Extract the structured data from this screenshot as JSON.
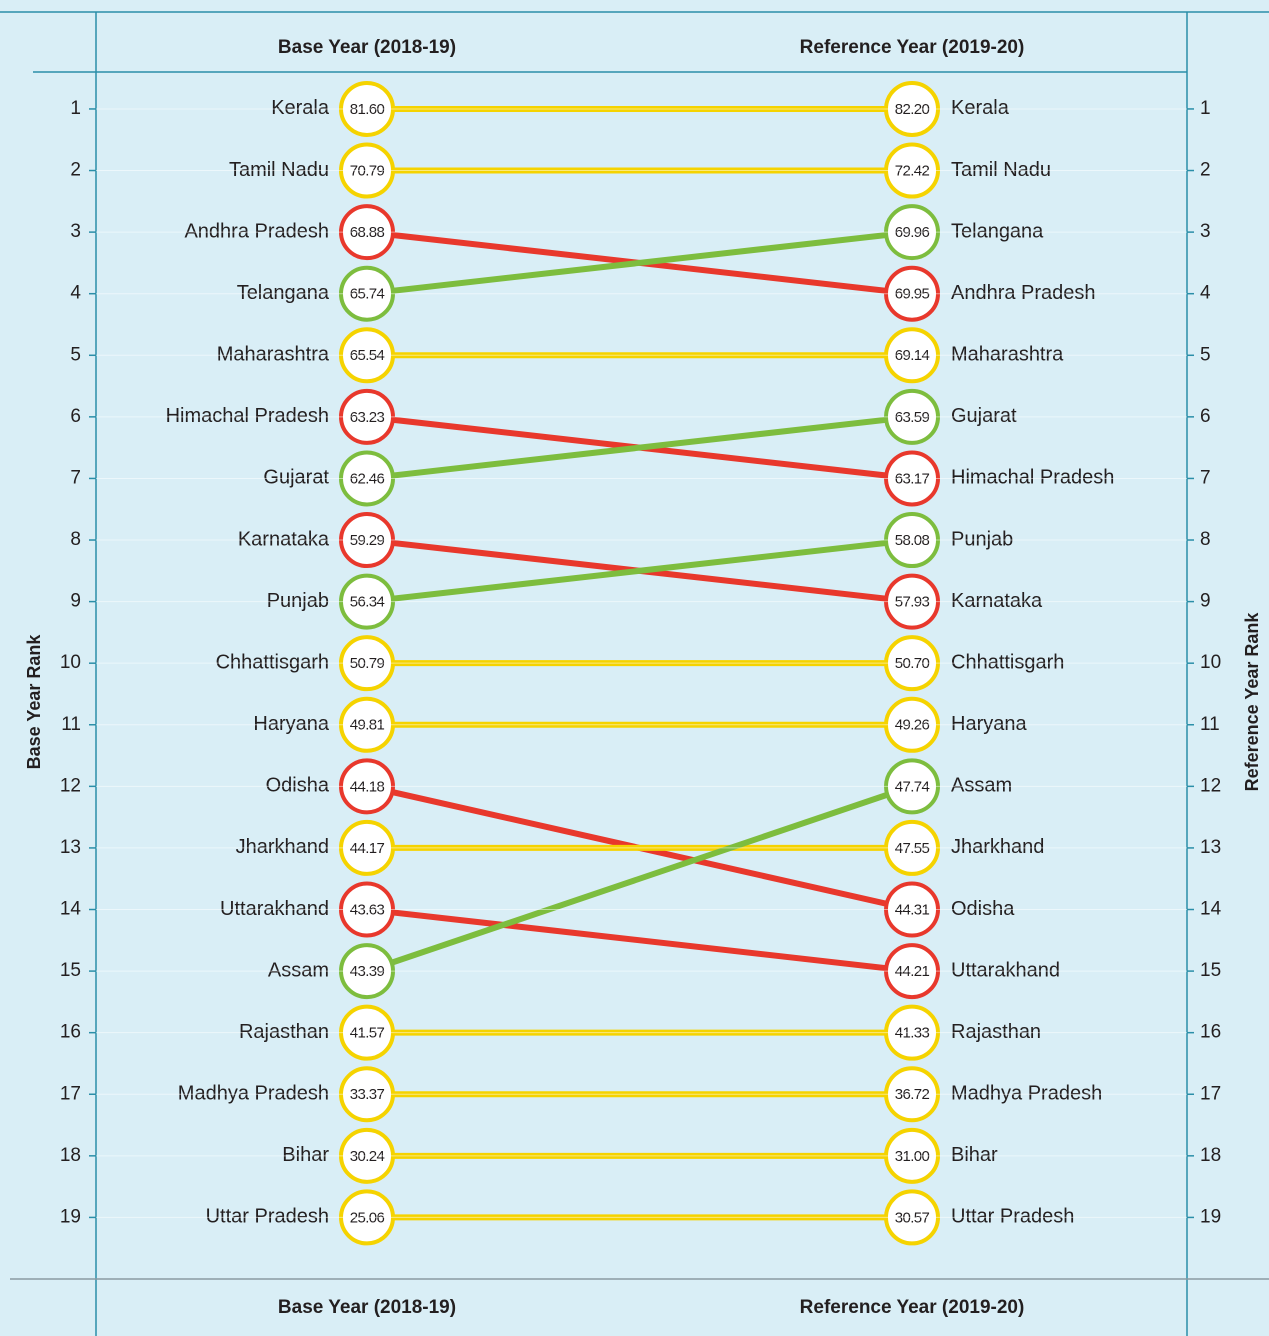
{
  "chart_data": {
    "type": "slope",
    "y_axis_label": "Base Year Rank",
    "y2_axis_label": "Reference Year Rank",
    "ylim": [
      0.4,
      20
    ],
    "yticks": [
      1,
      2,
      3,
      4,
      5,
      6,
      7,
      8,
      9,
      10,
      11,
      12,
      13,
      14,
      15,
      16,
      17,
      18,
      19
    ],
    "color_same": "#f5d300",
    "color_down": "#e8382c",
    "color_up": "#7dbd3e",
    "series": [
      {
        "name": "Base Year (2018-19)",
        "categories": [
          "Kerala",
          "Tamil Nadu",
          "Andhra Pradesh",
          "Telangana",
          "Maharashtra",
          "Himachal Pradesh",
          "Gujarat",
          "Karnataka",
          "Punjab",
          "Chhattisgarh",
          "Haryana",
          "Odisha",
          "Jharkhand",
          "Uttarakhand",
          "Assam",
          "Rajasthan",
          "Madhya Pradesh",
          "Bihar",
          "Uttar Pradesh"
        ],
        "values": [
          81.6,
          70.79,
          68.88,
          65.74,
          65.54,
          63.23,
          62.46,
          59.29,
          56.34,
          50.79,
          49.81,
          44.18,
          44.17,
          43.63,
          43.39,
          41.57,
          33.37,
          30.24,
          25.06
        ],
        "value_labels": [
          "81.60",
          "70.79",
          "68.88",
          "65.74",
          "65.54",
          "63.23",
          "62.46",
          "59.29",
          "56.34",
          "50.79",
          "49.81",
          "44.18",
          "44.17",
          "43.63",
          "43.39",
          "41.57",
          "33.37",
          "30.24",
          "25.06"
        ]
      },
      {
        "name": "Reference Year (2019-20)",
        "categories": [
          "Kerala",
          "Tamil Nadu",
          "Telangana",
          "Andhra Pradesh",
          "Maharashtra",
          "Gujarat",
          "Himachal Pradesh",
          "Punjab",
          "Karnataka",
          "Chhattisgarh",
          "Haryana",
          "Assam",
          "Jharkhand",
          "Odisha",
          "Uttarakhand",
          "Rajasthan",
          "Madhya Pradesh",
          "Bihar",
          "Uttar Pradesh"
        ],
        "values": [
          82.2,
          72.42,
          69.96,
          69.95,
          69.14,
          63.59,
          63.17,
          58.08,
          57.93,
          50.7,
          49.26,
          47.74,
          47.55,
          44.31,
          44.21,
          41.33,
          36.72,
          31.0,
          30.57
        ],
        "value_labels": [
          "82.20",
          "72.42",
          "69.96",
          "69.95",
          "69.14",
          "63.59",
          "63.17",
          "58.08",
          "57.93",
          "50.70",
          "49.26",
          "47.74",
          "47.55",
          "44.31",
          "44.21",
          "41.33",
          "36.72",
          "31.00",
          "30.57"
        ]
      }
    ]
  }
}
